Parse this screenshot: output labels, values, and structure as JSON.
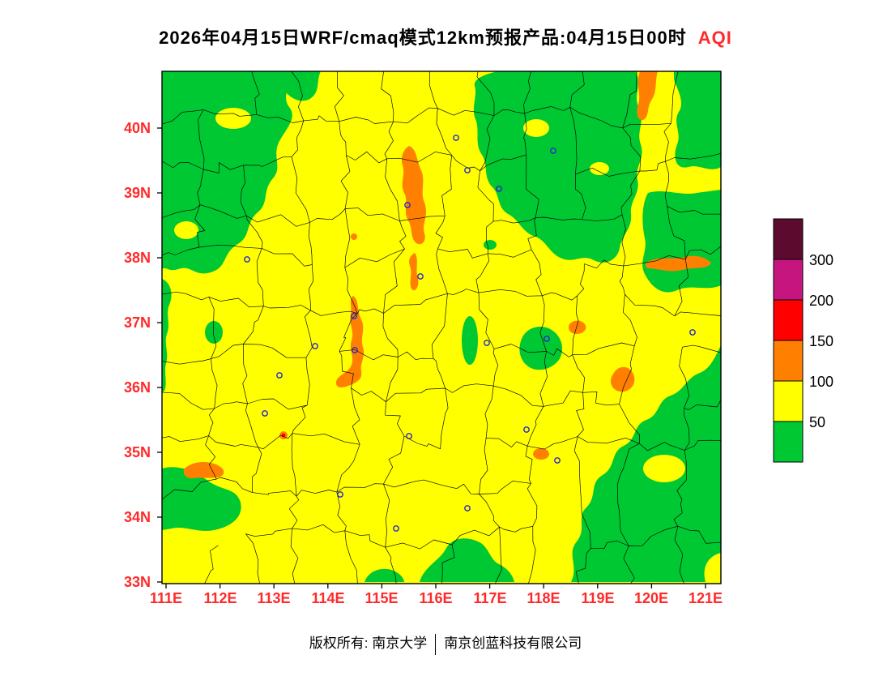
{
  "title": {
    "text": "2026年04月15日WRF/cmaq模式12km预报产品:04月15日00时",
    "highlight": "AQI"
  },
  "axes": {
    "lat": [
      "40N",
      "39N",
      "38N",
      "37N",
      "36N",
      "35N",
      "34N",
      "33N"
    ],
    "lon": [
      "111E",
      "112E",
      "113E",
      "114E",
      "115E",
      "116E",
      "117E",
      "118E",
      "119E",
      "120E",
      "121E"
    ]
  },
  "legend": {
    "values": [
      "300",
      "200",
      "150",
      "100",
      "50"
    ]
  },
  "colors": {
    "good_green": "#00C832",
    "moderate_yellow": "#FFFF00",
    "usg_orange": "#FF8000",
    "unhealthy_red": "#FF0000",
    "very_unhealthy_magenta": "#C6157E",
    "hazardous_maroon": "#5C0A2E",
    "marker_blue": "#2727CF",
    "axis_label_red": "#FF2A2A",
    "boundary_black": "#000000"
  },
  "footer": {
    "owner": "版权所有: 南京大学",
    "company": "南京创蓝科技有限公司"
  }
}
